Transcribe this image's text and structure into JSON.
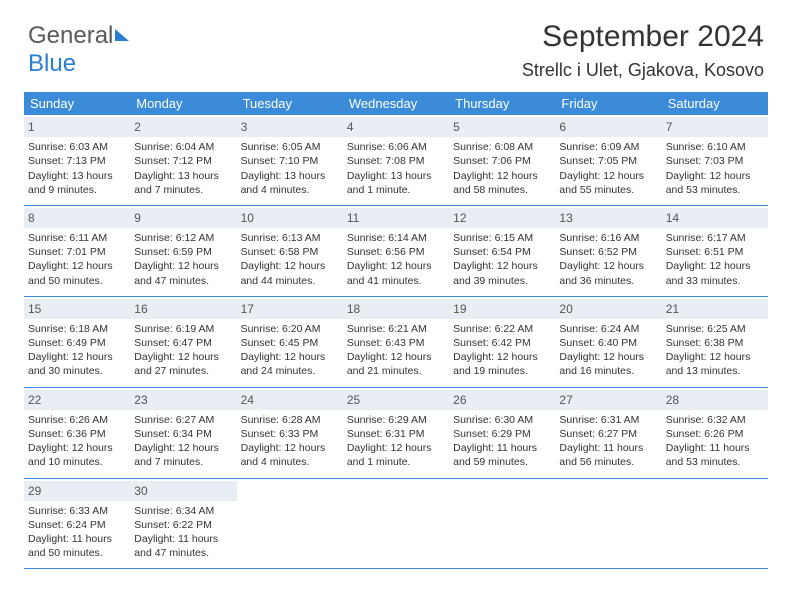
{
  "logo": {
    "text1": "General",
    "text2": "Blue"
  },
  "title": "September 2024",
  "location": "Strellc i Ulet, Gjakova, Kosovo",
  "colors": {
    "header_bg": "#3b8bd8",
    "header_text": "#ffffff",
    "daynum_bg": "#e8eef4",
    "rule": "#3b8bd8",
    "body_text": "#333333",
    "logo_gray": "#5a5a5a",
    "logo_blue": "#2b7cd3"
  },
  "day_headers": [
    "Sunday",
    "Monday",
    "Tuesday",
    "Wednesday",
    "Thursday",
    "Friday",
    "Saturday"
  ],
  "weeks": [
    [
      {
        "n": "1",
        "sunrise": "Sunrise: 6:03 AM",
        "sunset": "Sunset: 7:13 PM",
        "daylight": "Daylight: 13 hours and 9 minutes."
      },
      {
        "n": "2",
        "sunrise": "Sunrise: 6:04 AM",
        "sunset": "Sunset: 7:12 PM",
        "daylight": "Daylight: 13 hours and 7 minutes."
      },
      {
        "n": "3",
        "sunrise": "Sunrise: 6:05 AM",
        "sunset": "Sunset: 7:10 PM",
        "daylight": "Daylight: 13 hours and 4 minutes."
      },
      {
        "n": "4",
        "sunrise": "Sunrise: 6:06 AM",
        "sunset": "Sunset: 7:08 PM",
        "daylight": "Daylight: 13 hours and 1 minute."
      },
      {
        "n": "5",
        "sunrise": "Sunrise: 6:08 AM",
        "sunset": "Sunset: 7:06 PM",
        "daylight": "Daylight: 12 hours and 58 minutes."
      },
      {
        "n": "6",
        "sunrise": "Sunrise: 6:09 AM",
        "sunset": "Sunset: 7:05 PM",
        "daylight": "Daylight: 12 hours and 55 minutes."
      },
      {
        "n": "7",
        "sunrise": "Sunrise: 6:10 AM",
        "sunset": "Sunset: 7:03 PM",
        "daylight": "Daylight: 12 hours and 53 minutes."
      }
    ],
    [
      {
        "n": "8",
        "sunrise": "Sunrise: 6:11 AM",
        "sunset": "Sunset: 7:01 PM",
        "daylight": "Daylight: 12 hours and 50 minutes."
      },
      {
        "n": "9",
        "sunrise": "Sunrise: 6:12 AM",
        "sunset": "Sunset: 6:59 PM",
        "daylight": "Daylight: 12 hours and 47 minutes."
      },
      {
        "n": "10",
        "sunrise": "Sunrise: 6:13 AM",
        "sunset": "Sunset: 6:58 PM",
        "daylight": "Daylight: 12 hours and 44 minutes."
      },
      {
        "n": "11",
        "sunrise": "Sunrise: 6:14 AM",
        "sunset": "Sunset: 6:56 PM",
        "daylight": "Daylight: 12 hours and 41 minutes."
      },
      {
        "n": "12",
        "sunrise": "Sunrise: 6:15 AM",
        "sunset": "Sunset: 6:54 PM",
        "daylight": "Daylight: 12 hours and 39 minutes."
      },
      {
        "n": "13",
        "sunrise": "Sunrise: 6:16 AM",
        "sunset": "Sunset: 6:52 PM",
        "daylight": "Daylight: 12 hours and 36 minutes."
      },
      {
        "n": "14",
        "sunrise": "Sunrise: 6:17 AM",
        "sunset": "Sunset: 6:51 PM",
        "daylight": "Daylight: 12 hours and 33 minutes."
      }
    ],
    [
      {
        "n": "15",
        "sunrise": "Sunrise: 6:18 AM",
        "sunset": "Sunset: 6:49 PM",
        "daylight": "Daylight: 12 hours and 30 minutes."
      },
      {
        "n": "16",
        "sunrise": "Sunrise: 6:19 AM",
        "sunset": "Sunset: 6:47 PM",
        "daylight": "Daylight: 12 hours and 27 minutes."
      },
      {
        "n": "17",
        "sunrise": "Sunrise: 6:20 AM",
        "sunset": "Sunset: 6:45 PM",
        "daylight": "Daylight: 12 hours and 24 minutes."
      },
      {
        "n": "18",
        "sunrise": "Sunrise: 6:21 AM",
        "sunset": "Sunset: 6:43 PM",
        "daylight": "Daylight: 12 hours and 21 minutes."
      },
      {
        "n": "19",
        "sunrise": "Sunrise: 6:22 AM",
        "sunset": "Sunset: 6:42 PM",
        "daylight": "Daylight: 12 hours and 19 minutes."
      },
      {
        "n": "20",
        "sunrise": "Sunrise: 6:24 AM",
        "sunset": "Sunset: 6:40 PM",
        "daylight": "Daylight: 12 hours and 16 minutes."
      },
      {
        "n": "21",
        "sunrise": "Sunrise: 6:25 AM",
        "sunset": "Sunset: 6:38 PM",
        "daylight": "Daylight: 12 hours and 13 minutes."
      }
    ],
    [
      {
        "n": "22",
        "sunrise": "Sunrise: 6:26 AM",
        "sunset": "Sunset: 6:36 PM",
        "daylight": "Daylight: 12 hours and 10 minutes."
      },
      {
        "n": "23",
        "sunrise": "Sunrise: 6:27 AM",
        "sunset": "Sunset: 6:34 PM",
        "daylight": "Daylight: 12 hours and 7 minutes."
      },
      {
        "n": "24",
        "sunrise": "Sunrise: 6:28 AM",
        "sunset": "Sunset: 6:33 PM",
        "daylight": "Daylight: 12 hours and 4 minutes."
      },
      {
        "n": "25",
        "sunrise": "Sunrise: 6:29 AM",
        "sunset": "Sunset: 6:31 PM",
        "daylight": "Daylight: 12 hours and 1 minute."
      },
      {
        "n": "26",
        "sunrise": "Sunrise: 6:30 AM",
        "sunset": "Sunset: 6:29 PM",
        "daylight": "Daylight: 11 hours and 59 minutes."
      },
      {
        "n": "27",
        "sunrise": "Sunrise: 6:31 AM",
        "sunset": "Sunset: 6:27 PM",
        "daylight": "Daylight: 11 hours and 56 minutes."
      },
      {
        "n": "28",
        "sunrise": "Sunrise: 6:32 AM",
        "sunset": "Sunset: 6:26 PM",
        "daylight": "Daylight: 11 hours and 53 minutes."
      }
    ],
    [
      {
        "n": "29",
        "sunrise": "Sunrise: 6:33 AM",
        "sunset": "Sunset: 6:24 PM",
        "daylight": "Daylight: 11 hours and 50 minutes."
      },
      {
        "n": "30",
        "sunrise": "Sunrise: 6:34 AM",
        "sunset": "Sunset: 6:22 PM",
        "daylight": "Daylight: 11 hours and 47 minutes."
      },
      null,
      null,
      null,
      null,
      null
    ]
  ]
}
